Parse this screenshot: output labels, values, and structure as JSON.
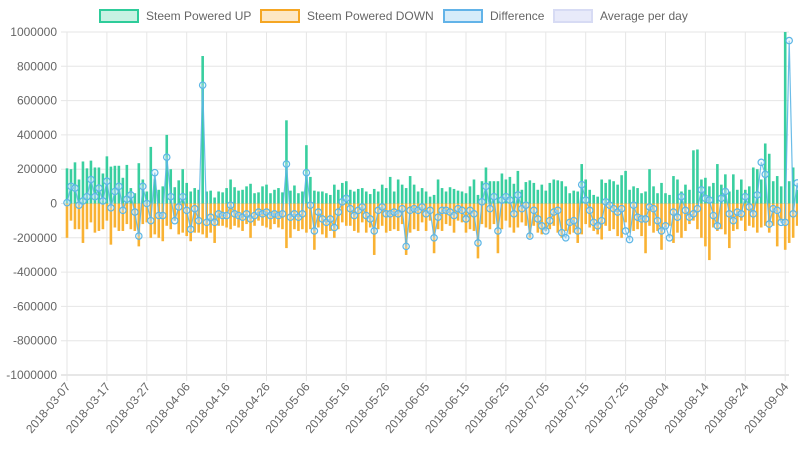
{
  "chart_data": {
    "type": "bar",
    "title": "",
    "xlabel": "",
    "ylabel": "",
    "ylim": [
      -1000000,
      1000000
    ],
    "y_ticks": [
      "1000000",
      "800000",
      "600000",
      "400000",
      "200000",
      "0",
      "-200000",
      "-400000",
      "-600000",
      "-800000",
      "-1000000"
    ],
    "y_tick_values": [
      1000000,
      800000,
      600000,
      400000,
      200000,
      0,
      -200000,
      -400000,
      -600000,
      -800000,
      -1000000
    ],
    "x_tick_labels": [
      "2018-03-07",
      "2018-03-17",
      "2018-03-27",
      "2018-04-06",
      "2018-04-16",
      "2018-04-26",
      "2018-05-06",
      "2018-05-16",
      "2018-05-26",
      "2018-06-05",
      "2018-06-15",
      "2018-06-25",
      "2018-07-05",
      "2018-07-15",
      "2018-07-25",
      "2018-08-04",
      "2018-08-14",
      "2018-08-24",
      "2018-09-04"
    ],
    "start_date": "2018-03-07",
    "grid": true,
    "legend_position": "top",
    "stacked": true,
    "series": [
      {
        "name": "Steem Powered UP",
        "type": "bar",
        "color": "#2ecc9a",
        "fill": "#c8f2e3",
        "values": [
          205000,
          200000,
          240000,
          140000,
          245000,
          205000,
          250000,
          210000,
          210000,
          175000,
          275000,
          215000,
          220000,
          220000,
          150000,
          225000,
          90000,
          60000,
          235000,
          140000,
          70000,
          330000,
          140000,
          80000,
          100000,
          400000,
          200000,
          95000,
          135000,
          200000,
          120000,
          70000,
          90000,
          80000,
          860000,
          70000,
          75000,
          35000,
          70000,
          65000,
          90000,
          140000,
          95000,
          75000,
          80000,
          100000,
          115000,
          60000,
          65000,
          100000,
          110000,
          60000,
          80000,
          90000,
          65000,
          485000,
          75000,
          105000,
          60000,
          70000,
          340000,
          155000,
          75000,
          70000,
          70000,
          60000,
          50000,
          110000,
          80000,
          120000,
          130000,
          80000,
          70000,
          85000,
          90000,
          70000,
          55000,
          85000,
          70000,
          110000,
          90000,
          155000,
          70000,
          140000,
          110000,
          90000,
          160000,
          110000,
          70000,
          90000,
          70000,
          40000,
          50000,
          140000,
          90000,
          70000,
          95000,
          85000,
          75000,
          70000,
          60000,
          100000,
          140000,
          50000,
          130000,
          210000,
          130000,
          130000,
          130000,
          175000,
          140000,
          155000,
          115000,
          190000,
          80000,
          125000,
          135000,
          120000,
          80000,
          110000,
          75000,
          120000,
          140000,
          135000,
          130000,
          100000,
          60000,
          75000,
          70000,
          230000,
          140000,
          80000,
          50000,
          40000,
          140000,
          120000,
          140000,
          130000,
          110000,
          165000,
          190000,
          80000,
          100000,
          90000,
          60000,
          70000,
          200000,
          100000,
          60000,
          120000,
          60000,
          50000,
          160000,
          140000,
          70000,
          110000,
          80000,
          310000,
          315000,
          140000,
          150000,
          100000,
          120000,
          230000,
          110000,
          170000,
          70000,
          170000,
          80000,
          140000,
          80000,
          100000,
          210000,
          200000,
          140000,
          350000,
          290000,
          130000,
          160000,
          100000,
          1000000,
          130000,
          210000,
          80000
        ],
        "approx": true
      },
      {
        "name": "Steem Powered DOWN",
        "type": "bar",
        "color": "#f5a623",
        "fill": "#fde7c4",
        "values": [
          -200000,
          -100000,
          -150000,
          -150000,
          -230000,
          -150000,
          -110000,
          -170000,
          -160000,
          -150000,
          -100000,
          -240000,
          -140000,
          -160000,
          -160000,
          -120000,
          -150000,
          -160000,
          -250000,
          -120000,
          -110000,
          -200000,
          -180000,
          -200000,
          -220000,
          -130000,
          -150000,
          -100000,
          -180000,
          -170000,
          -190000,
          -220000,
          -170000,
          -170000,
          -180000,
          -200000,
          -170000,
          -230000,
          -130000,
          -130000,
          -140000,
          -150000,
          -130000,
          -140000,
          -160000,
          -120000,
          -200000,
          -130000,
          -100000,
          -130000,
          -140000,
          -150000,
          -120000,
          -140000,
          -150000,
          -260000,
          -200000,
          -150000,
          -160000,
          -150000,
          -170000,
          -150000,
          -270000,
          -140000,
          -180000,
          -200000,
          -160000,
          -200000,
          -150000,
          -110000,
          -130000,
          -130000,
          -160000,
          -170000,
          -110000,
          -170000,
          -140000,
          -300000,
          -150000,
          -130000,
          -170000,
          -160000,
          -150000,
          -160000,
          -120000,
          -300000,
          -170000,
          -150000,
          -160000,
          -110000,
          -160000,
          -100000,
          -290000,
          -150000,
          -160000,
          -120000,
          -130000,
          -170000,
          -100000,
          -110000,
          -170000,
          -150000,
          -160000,
          -320000,
          -120000,
          -140000,
          -150000,
          -120000,
          -290000,
          -150000,
          -100000,
          -140000,
          -170000,
          -140000,
          -110000,
          -130000,
          -200000,
          -130000,
          -170000,
          -180000,
          -160000,
          -150000,
          -130000,
          -170000,
          -200000,
          -160000,
          -180000,
          -170000,
          -230000,
          -180000,
          -120000,
          -140000,
          -160000,
          -180000,
          -210000,
          -130000,
          -160000,
          -150000,
          -190000,
          -200000,
          -110000,
          -170000,
          -160000,
          -150000,
          -190000,
          -290000,
          -130000,
          -170000,
          -160000,
          -270000,
          -140000,
          -130000,
          -230000,
          -170000,
          -200000,
          -160000,
          -120000,
          -100000,
          -150000,
          -200000,
          -250000,
          -330000,
          -140000,
          -160000,
          -150000,
          -180000,
          -260000,
          -160000,
          -150000,
          -100000,
          -160000,
          -130000,
          -140000,
          -170000,
          -140000,
          -130000,
          -170000,
          -130000,
          -250000,
          -100000,
          -270000,
          -230000,
          -200000,
          -130000,
          -130000,
          -130000,
          -120000,
          -120000
        ],
        "approx": true
      },
      {
        "name": "Difference",
        "type": "line",
        "color": "#36a2eb",
        "fill": "#d6ecfa",
        "values": [
          5000,
          100000,
          90000,
          -10000,
          15000,
          40000,
          140000,
          40000,
          90000,
          15000,
          130000,
          -25000,
          70000,
          100000,
          -40000,
          25000,
          50000,
          -50000,
          -190000,
          100000,
          0,
          -100000,
          180000,
          -70000,
          -70000,
          270000,
          40000,
          -100000,
          -20000,
          40000,
          -40000,
          -150000,
          -30000,
          -100000,
          690000,
          -110000,
          -80000,
          -110000,
          -60000,
          -70000,
          -70000,
          -10000,
          -60000,
          -70000,
          -80000,
          -60000,
          -90000,
          -70000,
          -50000,
          -60000,
          -50000,
          -70000,
          -60000,
          -70000,
          -60000,
          230000,
          -80000,
          -60000,
          -80000,
          -60000,
          180000,
          -10000,
          -160000,
          -50000,
          -90000,
          -110000,
          -90000,
          -140000,
          -50000,
          10000,
          30000,
          -30000,
          -70000,
          -40000,
          -20000,
          -70000,
          -90000,
          -160000,
          -40000,
          -20000,
          -60000,
          -60000,
          -50000,
          -60000,
          -30000,
          -250000,
          -40000,
          -30000,
          -40000,
          -20000,
          -60000,
          -40000,
          -200000,
          -80000,
          -40000,
          -40000,
          -50000,
          -70000,
          -30000,
          -40000,
          -90000,
          -40000,
          -60000,
          -230000,
          10000,
          100000,
          -30000,
          40000,
          -160000,
          20000,
          40000,
          20000,
          -60000,
          50000,
          -30000,
          -10000,
          -190000,
          -40000,
          -90000,
          -130000,
          -160000,
          -100000,
          -50000,
          -40000,
          -170000,
          -200000,
          -110000,
          -100000,
          -160000,
          110000,
          20000,
          -40000,
          -110000,
          -130000,
          -100000,
          10000,
          -10000,
          -30000,
          -50000,
          -30000,
          -160000,
          -210000,
          -10000,
          -80000,
          -90000,
          -90000,
          -20000,
          -30000,
          -100000,
          -160000,
          -130000,
          -200000,
          -50000,
          -80000,
          40000,
          -40000,
          -80000,
          -60000,
          -30000,
          80000,
          30000,
          20000,
          -70000,
          -130000,
          30000,
          70000,
          -60000,
          -100000,
          -50000,
          -60000,
          40000,
          -20000,
          -60000,
          50000,
          240000,
          170000,
          -120000,
          -30000,
          -40000,
          -110000,
          -110000,
          950000,
          -60000,
          120000,
          -50000,
          -50000
        ],
        "approx": true
      },
      {
        "name": "Average per day",
        "type": "line",
        "color": "#c5caf0",
        "fill": "#e8eafa",
        "values": [],
        "approx": true
      }
    ]
  }
}
